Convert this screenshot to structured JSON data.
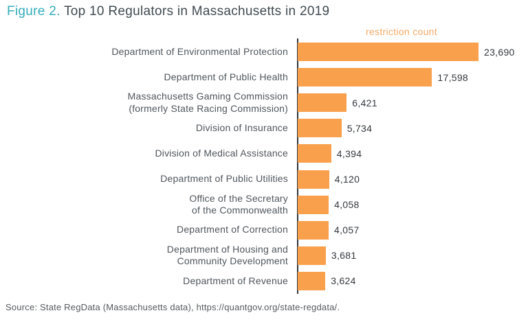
{
  "title": {
    "prefix": "Figure 2.",
    "text": "Top 10 Regulators in Massachusetts in 2019"
  },
  "chart_data": {
    "type": "bar",
    "orientation": "horizontal",
    "axis_label": "restriction count",
    "categories": [
      [
        "Department of Environmental Protection"
      ],
      [
        "Department of Public Health"
      ],
      [
        "Massachusetts Gaming Commission",
        "(formerly State Racing Commission)"
      ],
      [
        "Division of Insurance"
      ],
      [
        "Division of Medical Assistance"
      ],
      [
        "Department of Public Utilities"
      ],
      [
        "Office of the Secretary",
        "of the Commonwealth"
      ],
      [
        "Department of Correction"
      ],
      [
        "Department of Housing and",
        "Community Development"
      ],
      [
        "Department of Revenue"
      ]
    ],
    "values": [
      23690,
      17598,
      6421,
      5734,
      4394,
      4120,
      4058,
      4057,
      3681,
      3624
    ],
    "value_labels": [
      "23,690",
      "17,598",
      "6,421",
      "5,734",
      "4,394",
      "4,120",
      "4,058",
      "4,057",
      "3,681",
      "3,624"
    ],
    "xlim": [
      0,
      23690
    ],
    "grid": false,
    "legend": "none",
    "bar_color": "#F9A04C"
  },
  "source": "Source: State RegData (Massachusetts data), https://quantgov.org/state-regdata/.",
  "colors": {
    "accent_teal": "#33ADBB",
    "title_gray": "#3F4A50",
    "bar_orange": "#F9A04C",
    "axis_label_orange": "#F5A965",
    "category_label_gray": "#4F565C",
    "value_gray": "#33383D",
    "axis_line": "#2F3338",
    "source_gray": "#55595D"
  }
}
